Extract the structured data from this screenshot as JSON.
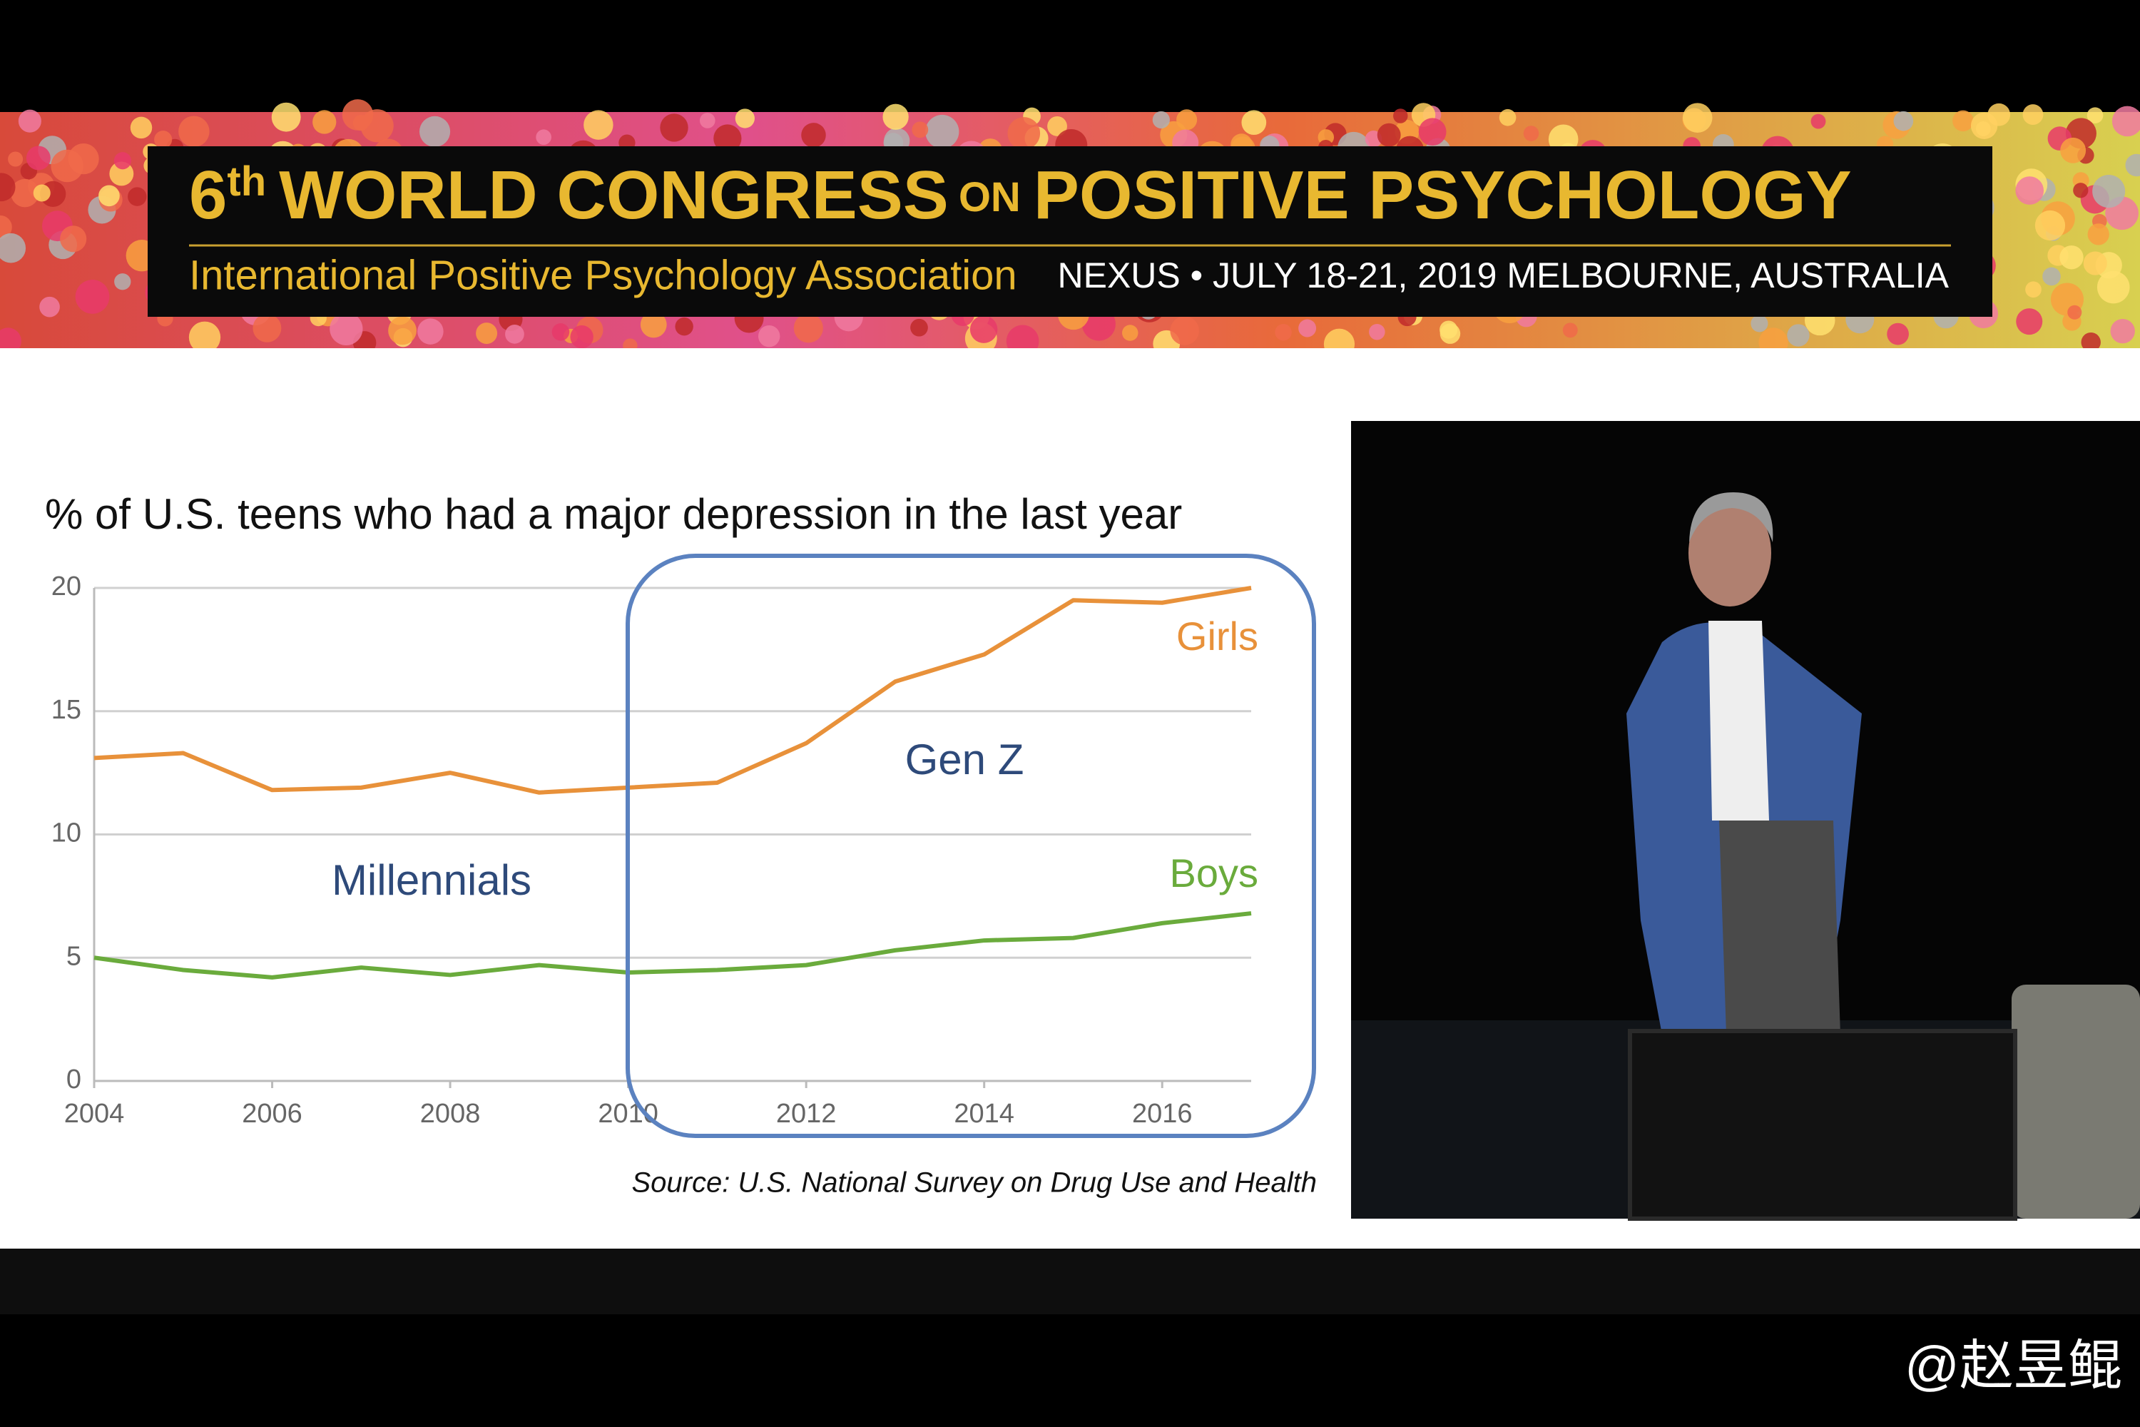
{
  "header": {
    "title_number": "6",
    "title_suffix": "th",
    "title_part1": "WORLD CONGRESS",
    "title_small": "ON",
    "title_part2": "POSITIVE PSYCHOLOGY",
    "organization": "International Positive Psychology Association",
    "event": "NEXUS • JULY 18-21, 2019 MELBOURNE, AUSTRALIA"
  },
  "chart_data": {
    "type": "line",
    "title": "% of U.S. teens who had a major depression in the last year",
    "x": [
      2004,
      2005,
      2006,
      2007,
      2008,
      2009,
      2010,
      2011,
      2012,
      2013,
      2014,
      2015,
      2016,
      2017
    ],
    "series": [
      {
        "name": "Girls",
        "color": "#e8913a",
        "values": [
          13.1,
          13.3,
          11.8,
          11.9,
          12.5,
          11.7,
          11.9,
          12.1,
          13.7,
          16.2,
          17.3,
          19.5,
          19.4,
          20.0
        ]
      },
      {
        "name": "Boys",
        "color": "#6aab3c",
        "values": [
          5.0,
          4.5,
          4.2,
          4.6,
          4.3,
          4.7,
          4.4,
          4.5,
          4.7,
          5.3,
          5.7,
          5.8,
          6.4,
          6.8
        ]
      }
    ],
    "xlim": [
      2004,
      2017
    ],
    "xticks": [
      2004,
      2006,
      2008,
      2010,
      2012,
      2014,
      2016
    ],
    "ylim": [
      0,
      20
    ],
    "yticks": [
      0,
      5,
      10,
      15,
      20
    ],
    "grid": true,
    "annotations": [
      "Millennials",
      "Gen Z"
    ],
    "source": "Source: U.S. National Survey on Drug Use and Health"
  },
  "watermark": "@赵昱鲲"
}
